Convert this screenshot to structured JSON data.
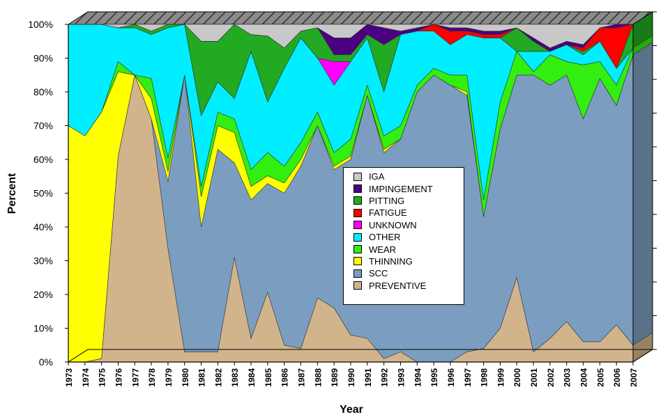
{
  "chart_data": {
    "type": "area",
    "stacked": true,
    "normalized_percent": true,
    "three_d": true,
    "xlabel": "Year",
    "ylabel": "Percent",
    "ylim": [
      0,
      100
    ],
    "yticks": [
      "0%",
      "10%",
      "20%",
      "30%",
      "40%",
      "50%",
      "60%",
      "70%",
      "80%",
      "90%",
      "100%"
    ],
    "grid": false,
    "legend_position": "center",
    "x": [
      "1973",
      "1974",
      "1975",
      "1976",
      "1977",
      "1978",
      "1979",
      "1980",
      "1981",
      "1982",
      "1983",
      "1984",
      "1985",
      "1986",
      "1987",
      "1988",
      "1989",
      "1990",
      "1991",
      "1992",
      "1993",
      "1994",
      "1995",
      "1996",
      "1997",
      "1998",
      "1999",
      "2000",
      "2001",
      "2002",
      "2003",
      "2004",
      "2005",
      "2006",
      "2007"
    ],
    "series": [
      {
        "name": "PREVENTIVE",
        "color": "#d2b48c",
        "values": [
          0,
          0,
          1,
          61,
          85,
          72,
          34,
          3,
          3,
          3,
          31,
          7,
          18,
          5,
          4,
          19,
          16,
          8,
          7,
          1,
          3,
          0,
          0,
          0,
          3,
          4,
          10,
          25,
          3,
          7,
          12,
          6,
          6,
          11,
          5
        ]
      },
      {
        "name": "SCC",
        "color": "#7b9ec0",
        "values": [
          0,
          0,
          0,
          0,
          0,
          0,
          20,
          82,
          37,
          60,
          28,
          41,
          28,
          45,
          54,
          51,
          41,
          52,
          72,
          61,
          63,
          80,
          85,
          82,
          76,
          39,
          59,
          60,
          82,
          75,
          73,
          66,
          78,
          65,
          86
        ]
      },
      {
        "name": "THINNING",
        "color": "#ffff00",
        "values": [
          70,
          67,
          73,
          25,
          0,
          6,
          3,
          0,
          9,
          7,
          9,
          4,
          2,
          3,
          2,
          0,
          1,
          1,
          0,
          1,
          0,
          0,
          0,
          0,
          1,
          0,
          0,
          0,
          0,
          0,
          0,
          0,
          0,
          0,
          0
        ]
      },
      {
        "name": "WEAR",
        "color": "#33ee11",
        "values": [
          0,
          0,
          0,
          3,
          0,
          6,
          4,
          0,
          3,
          4,
          4,
          5,
          6,
          5,
          5,
          4,
          4,
          5,
          3,
          4,
          4,
          2,
          2,
          3,
          5,
          5,
          8,
          7,
          1,
          9,
          4,
          16,
          5,
          6,
          2
        ]
      },
      {
        "name": "OTHER",
        "color": "#00eeff",
        "values": [
          30,
          33,
          26,
          10,
          14,
          13,
          39,
          15,
          21,
          9,
          6,
          35,
          13,
          29,
          31,
          16,
          20,
          23,
          14,
          13,
          27,
          16,
          11,
          9,
          12,
          48,
          19,
          0,
          6,
          1,
          5,
          3,
          6,
          5,
          0
        ]
      },
      {
        "name": "UNKNOWN",
        "color": "#ff00ff",
        "values": [
          0,
          0,
          0,
          0,
          0,
          0,
          0,
          0,
          0,
          0,
          0,
          0,
          0,
          0,
          0,
          0,
          7,
          0,
          0,
          0,
          0,
          0,
          0,
          0,
          0,
          0,
          0,
          0,
          0,
          0,
          0,
          0,
          0,
          0,
          0
        ]
      },
      {
        "name": "PITTING",
        "color": "#22aa22",
        "values": [
          0,
          0,
          0,
          0,
          1,
          1,
          1,
          0,
          22,
          12,
          22,
          5,
          17,
          6,
          2,
          9,
          2,
          2,
          1,
          14,
          0,
          0,
          0,
          0,
          0,
          0,
          0,
          7,
          3,
          0,
          0,
          1,
          0,
          0,
          7
        ]
      },
      {
        "name": "FATIGUE",
        "color": "#ff0000",
        "values": [
          0,
          0,
          0,
          0,
          0,
          0,
          0,
          0,
          0,
          0,
          0,
          0,
          0,
          0,
          0,
          0,
          0,
          0,
          0,
          0,
          0,
          0,
          2,
          4,
          1,
          1,
          1,
          0,
          0,
          0,
          0,
          1,
          4,
          12,
          0
        ]
      },
      {
        "name": "IMPINGEMENT",
        "color": "#4b0082",
        "values": [
          0,
          0,
          0,
          0,
          0,
          0,
          0,
          0,
          0,
          0,
          0,
          0,
          0,
          0,
          0,
          0,
          5,
          5,
          3,
          5,
          1,
          1,
          0,
          1,
          1,
          1,
          1,
          0,
          1,
          1,
          1,
          1,
          0,
          1,
          0
        ]
      },
      {
        "name": "IGA",
        "color": "#c8c8c8",
        "values": [
          0,
          0,
          0,
          1,
          0,
          2,
          0,
          0,
          5,
          5,
          0,
          3,
          3,
          7,
          2,
          1,
          4,
          4,
          0,
          1,
          2,
          1,
          0,
          1,
          1,
          2,
          2,
          1,
          4,
          7,
          5,
          6,
          1,
          0,
          0
        ]
      }
    ],
    "legend_order": [
      "IGA",
      "IMPINGEMENT",
      "PITTING",
      "FATIGUE",
      "UNKNOWN",
      "OTHER",
      "WEAR",
      "THINNING",
      "SCC",
      "PREVENTIVE"
    ]
  }
}
